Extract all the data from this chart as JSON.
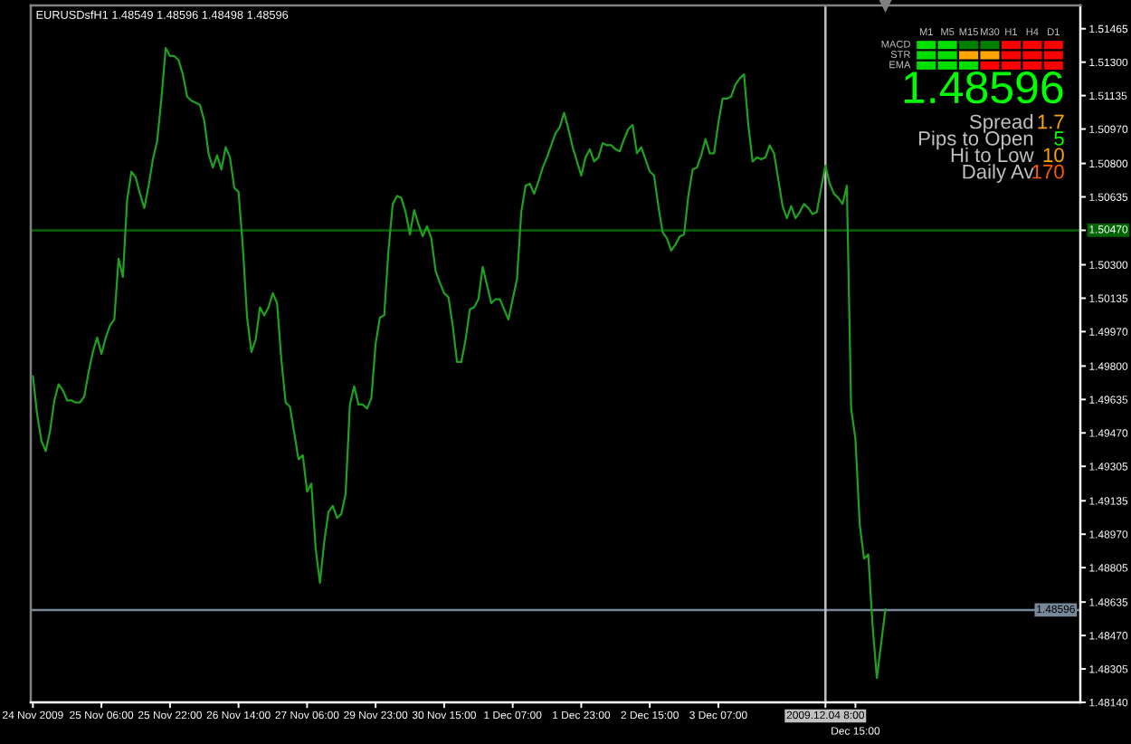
{
  "chart_data": [
    {
      "type": "line",
      "title": "EURUSDsfH1 1.48549 1.48596 1.48498 1.48596",
      "categories": [
        "24 Nov 2009",
        null,
        null,
        null,
        null,
        null,
        null,
        null,
        null,
        null,
        null,
        null,
        null,
        null,
        null,
        null,
        "25 Nov 06:00",
        null,
        null,
        null,
        null,
        null,
        null,
        null,
        null,
        null,
        null,
        null,
        null,
        null,
        null,
        null,
        "25 Nov 22:00",
        null,
        null,
        null,
        null,
        null,
        null,
        null,
        null,
        null,
        null,
        null,
        null,
        null,
        null,
        null,
        "26 Nov 14:00",
        null,
        null,
        null,
        null,
        null,
        null,
        null,
        null,
        null,
        null,
        null,
        null,
        null,
        null,
        null,
        "27 Nov 06:00",
        null,
        null,
        null,
        null,
        null,
        null,
        null,
        null,
        null,
        null,
        null,
        null,
        null,
        null,
        null,
        "29 Nov 23:00",
        null,
        null,
        null,
        null,
        null,
        null,
        null,
        null,
        null,
        null,
        null,
        null,
        null,
        null,
        null,
        "30 Nov 15:00",
        null,
        null,
        null,
        null,
        null,
        null,
        null,
        null,
        null,
        null,
        null,
        null,
        null,
        null,
        null,
        "1 Dec 07:00",
        null,
        null,
        null,
        null,
        null,
        null,
        null,
        null,
        null,
        null,
        null,
        null,
        null,
        null,
        null,
        "1 Dec 23:00",
        null,
        null,
        null,
        null,
        null,
        null,
        null,
        null,
        null,
        null,
        null,
        null,
        null,
        null,
        null,
        "2 Dec 15:00",
        null,
        null,
        null,
        null,
        null,
        null,
        null,
        null,
        null,
        null,
        null,
        null,
        null,
        null,
        null,
        "3 Dec 07:00",
        null,
        null,
        null,
        null,
        null,
        null,
        null,
        null,
        null,
        null,
        null,
        null,
        null,
        null,
        null,
        null,
        null,
        null,
        null,
        null,
        null,
        null,
        null,
        null,
        "2009.12.04 8:00",
        null,
        null,
        null,
        null,
        null,
        null,
        "Dec 15:00",
        null,
        null,
        null,
        null,
        null,
        null,
        null,
        null,
        null,
        null,
        null,
        null,
        null,
        null,
        null,
        null,
        null,
        null,
        null,
        null,
        null,
        null,
        null,
        null,
        null,
        null,
        null,
        null,
        null,
        null,
        null,
        null,
        null,
        null,
        null,
        null,
        null,
        null,
        null,
        null,
        null,
        null,
        null,
        null,
        null,
        null,
        null,
        null,
        null,
        null,
        null,
        null
      ],
      "series": [
        {
          "color": "#1fa01f",
          "values": [
            1.4975,
            1.4956,
            1.4943,
            1.4938,
            1.4948,
            1.4963,
            1.4971,
            1.4968,
            1.4963,
            1.4963,
            1.4962,
            1.4962,
            1.4965,
            1.4977,
            1.4987,
            1.4994,
            1.4986,
            1.4994,
            1.5,
            1.5003,
            1.5033,
            1.5024,
            1.5062,
            1.5076,
            1.5073,
            1.5065,
            1.5058,
            1.5069,
            1.5082,
            1.5091,
            1.5112,
            1.5137,
            1.5133,
            1.5133,
            1.5131,
            1.5124,
            1.5113,
            1.5111,
            1.511,
            1.5109,
            1.5101,
            1.5085,
            1.5078,
            1.5084,
            1.5077,
            1.5088,
            1.5083,
            1.5068,
            1.5066,
            1.5039,
            1.5004,
            1.4987,
            1.4993,
            1.5009,
            1.5005,
            1.5009,
            1.5016,
            1.5011,
            1.4983,
            1.4962,
            1.496,
            1.4947,
            1.4934,
            1.4936,
            1.4918,
            1.4922,
            1.489,
            1.4873,
            1.4893,
            1.4908,
            1.4911,
            1.4905,
            1.4907,
            1.4917,
            1.4961,
            1.497,
            1.4961,
            1.4961,
            1.4959,
            1.4964,
            1.4991,
            1.5004,
            1.5005,
            1.5037,
            1.506,
            1.5064,
            1.5063,
            1.5056,
            1.5045,
            1.5057,
            1.505,
            1.5044,
            1.5049,
            1.5043,
            1.5027,
            1.5021,
            1.5016,
            1.5014,
            1.5,
            1.4982,
            1.4982,
            1.4993,
            1.5008,
            1.5009,
            1.5013,
            1.5029,
            1.502,
            1.5011,
            1.5013,
            1.5013,
            1.5008,
            1.5003,
            1.5013,
            1.5023,
            1.5056,
            1.5069,
            1.507,
            1.5065,
            1.5071,
            1.5078,
            1.5083,
            1.5089,
            1.5095,
            1.5098,
            1.5105,
            1.5097,
            1.5088,
            1.5081,
            1.5074,
            1.5083,
            1.5087,
            1.5081,
            1.5083,
            1.509,
            1.5089,
            1.5089,
            1.5087,
            1.5086,
            1.5092,
            1.5097,
            1.5099,
            1.5085,
            1.5088,
            1.5082,
            1.5076,
            1.5074,
            1.5059,
            1.5046,
            1.5043,
            1.5037,
            1.504,
            1.5044,
            1.5045,
            1.5064,
            1.5077,
            1.5078,
            1.5084,
            1.5092,
            1.5085,
            1.5085,
            1.51,
            1.5112,
            1.5112,
            1.5113,
            1.5119,
            1.5122,
            1.5124,
            1.5099,
            1.5081,
            1.5083,
            1.5082,
            1.5083,
            1.5089,
            1.5085,
            1.5072,
            1.5059,
            1.5053,
            1.5059,
            1.5053,
            1.5056,
            1.506,
            1.5058,
            1.5055,
            1.5056,
            1.5068,
            1.5079,
            1.507,
            1.5065,
            1.5063,
            1.506,
            1.5069,
            1.4959,
            1.4944,
            1.4902,
            1.4885,
            1.4887,
            1.4852,
            1.4826,
            1.4843,
            1.486,
            null,
            null,
            null,
            null,
            null,
            null,
            null,
            null,
            null,
            null,
            null,
            null,
            null,
            null,
            null,
            null,
            null,
            null,
            null,
            null,
            null,
            null,
            null,
            null,
            null,
            null,
            null,
            null,
            null,
            null,
            null,
            null,
            null,
            null,
            null,
            null,
            null,
            null,
            null,
            null,
            null,
            null,
            null,
            null,
            null
          ]
        }
      ],
      "ylim": [
        1.4814,
        1.5158
      ],
      "yticks": [
        {
          "value": 1.51465,
          "label": "1.51465"
        },
        {
          "value": 1.513,
          "label": "1.51300"
        },
        {
          "value": 1.51135,
          "label": "1.51135"
        },
        {
          "value": 1.5097,
          "label": "1.50970"
        },
        {
          "value": 1.508,
          "label": "1.50800"
        },
        {
          "value": 1.50635,
          "label": "1.50635"
        },
        {
          "value": 1.5047,
          "label": null
        },
        {
          "value": 1.503,
          "label": "1.50300"
        },
        {
          "value": 1.50135,
          "label": "1.50135"
        },
        {
          "value": 1.4997,
          "label": "1.49970"
        },
        {
          "value": 1.498,
          "label": "1.49800"
        },
        {
          "value": 1.49635,
          "label": "1.49635"
        },
        {
          "value": 1.4947,
          "label": "1.49470"
        },
        {
          "value": 1.49305,
          "label": "1.49305"
        },
        {
          "value": 1.49135,
          "label": "1.49135"
        },
        {
          "value": 1.4897,
          "label": "1.48970"
        },
        {
          "value": 1.48805,
          "label": "1.48805"
        },
        {
          "value": 1.48635,
          "label": "1.48635"
        },
        {
          "value": 1.4847,
          "label": "1.48470"
        },
        {
          "value": 1.48305,
          "label": "1.48305"
        },
        {
          "value": 1.4814,
          "label": "1.48140"
        }
      ],
      "ref_lines": [
        {
          "axis": "y",
          "value": 1.5047,
          "label": "1.50470",
          "color": "#006400"
        },
        {
          "axis": "y",
          "value": 1.48596,
          "label": "1.48596",
          "color": "#778899"
        },
        {
          "axis": "x",
          "value": "2009.12.04 8:00",
          "color": "#c0c0c0"
        }
      ]
    },
    {
      "type": "other",
      "categories": [
        "M1",
        "M5",
        "M15",
        "M30",
        "H1",
        "H4",
        "D1"
      ],
      "y_categories": [
        "MACD",
        "STR",
        "EMA"
      ],
      "colors": [
        "#00e000",
        "#00e000",
        "#008000",
        "#008000",
        "#ff0000",
        "#ff0000",
        "#ff0000",
        "#00e000",
        "#00e000",
        "#ffa500",
        "#ffa500",
        "#ff0000",
        "#ff0000",
        "#ff0000",
        "#00e000",
        "#00e000",
        "#00e000",
        "#ff0000",
        "#ff0000",
        "#ff0000",
        "#ff0000"
      ]
    },
    {
      "type": "other",
      "title": "1.48596",
      "categories": [
        "Spread",
        "Pips to Open",
        "Hi to Low",
        "Daily Av"
      ],
      "values": [
        1.7,
        5,
        10,
        170
      ],
      "colors": [
        "#ffa500",
        "#00ff00",
        "#ffa500",
        "#ff5a00"
      ],
      "data_labels": true
    }
  ]
}
